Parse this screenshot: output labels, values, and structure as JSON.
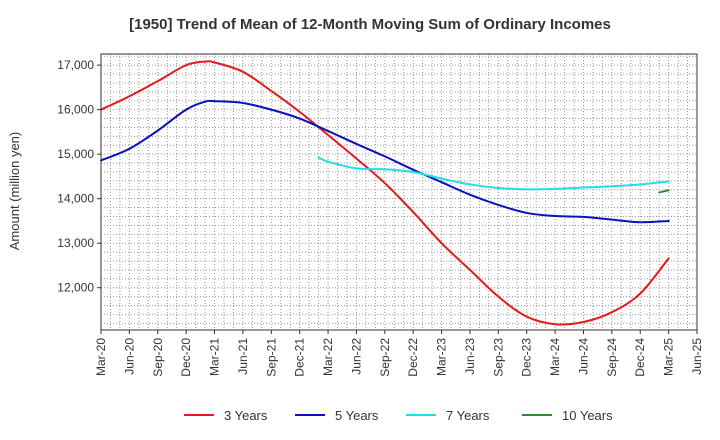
{
  "chart_data": {
    "type": "line",
    "title": "[1950]  Trend of Mean of 12-Month Moving Sum of Ordinary Incomes",
    "xlabel": "",
    "ylabel": "Amount (million yen)",
    "ylim": [
      11050,
      17250
    ],
    "yticks": [
      12000,
      13000,
      14000,
      15000,
      16000,
      17000
    ],
    "ytick_labels": [
      "12,000",
      "13,000",
      "14,000",
      "15,000",
      "16,000",
      "17,000"
    ],
    "x_range": [
      0,
      21
    ],
    "xticks": [
      0,
      1,
      2,
      3,
      4,
      5,
      6,
      7,
      8,
      9,
      10,
      11,
      12,
      13,
      14,
      15,
      16,
      17,
      18,
      19,
      20,
      21
    ],
    "xtick_labels": [
      "Mar-20",
      "Jun-20",
      "Sep-20",
      "Dec-20",
      "Mar-21",
      "Jun-21",
      "Sep-21",
      "Dec-21",
      "Mar-22",
      "Jun-22",
      "Sep-22",
      "Dec-22",
      "Mar-23",
      "Jun-23",
      "Sep-23",
      "Dec-23",
      "Mar-24",
      "Jun-24",
      "Sep-24",
      "Dec-24",
      "Mar-25",
      "Jun-25"
    ],
    "grid": true,
    "legend_position": "bottom",
    "series": [
      {
        "name": "3 Years",
        "color": "#e41a1c",
        "points": [
          [
            0,
            16000
          ],
          [
            1,
            16300
          ],
          [
            2,
            16640
          ],
          [
            3,
            17000
          ],
          [
            3.67,
            17080
          ],
          [
            4,
            17060
          ],
          [
            5,
            16850
          ],
          [
            6,
            16420
          ],
          [
            7,
            15950
          ],
          [
            8,
            15430
          ],
          [
            9,
            14900
          ],
          [
            10,
            14350
          ],
          [
            11,
            13700
          ],
          [
            12,
            13000
          ],
          [
            13,
            12400
          ],
          [
            14,
            11800
          ],
          [
            15,
            11350
          ],
          [
            16,
            11180
          ],
          [
            17,
            11230
          ],
          [
            18,
            11450
          ],
          [
            19,
            11870
          ],
          [
            20,
            12660
          ]
        ]
      },
      {
        "name": "5 Years",
        "color": "#0a10c0",
        "points": [
          [
            0,
            14860
          ],
          [
            1,
            15120
          ],
          [
            2,
            15530
          ],
          [
            3,
            16000
          ],
          [
            3.67,
            16180
          ],
          [
            4,
            16190
          ],
          [
            5,
            16150
          ],
          [
            6,
            16000
          ],
          [
            7,
            15800
          ],
          [
            8,
            15520
          ],
          [
            9,
            15230
          ],
          [
            10,
            14950
          ],
          [
            11,
            14650
          ],
          [
            12,
            14370
          ],
          [
            13,
            14090
          ],
          [
            14,
            13860
          ],
          [
            15,
            13680
          ],
          [
            16,
            13610
          ],
          [
            17,
            13590
          ],
          [
            18,
            13530
          ],
          [
            19,
            13470
          ],
          [
            20,
            13500
          ]
        ]
      },
      {
        "name": "7 Years",
        "color": "#22dde8",
        "points": [
          [
            7.67,
            14920
          ],
          [
            8,
            14830
          ],
          [
            9,
            14680
          ],
          [
            10,
            14660
          ],
          [
            11,
            14600
          ],
          [
            12,
            14450
          ],
          [
            13,
            14320
          ],
          [
            14,
            14240
          ],
          [
            15,
            14210
          ],
          [
            16,
            14220
          ],
          [
            17,
            14250
          ],
          [
            18,
            14280
          ],
          [
            19,
            14320
          ],
          [
            20,
            14390
          ]
        ]
      },
      {
        "name": "10 Years",
        "color": "#2e8b2e",
        "points": [
          [
            19.67,
            14140
          ],
          [
            20,
            14190
          ]
        ]
      }
    ]
  }
}
